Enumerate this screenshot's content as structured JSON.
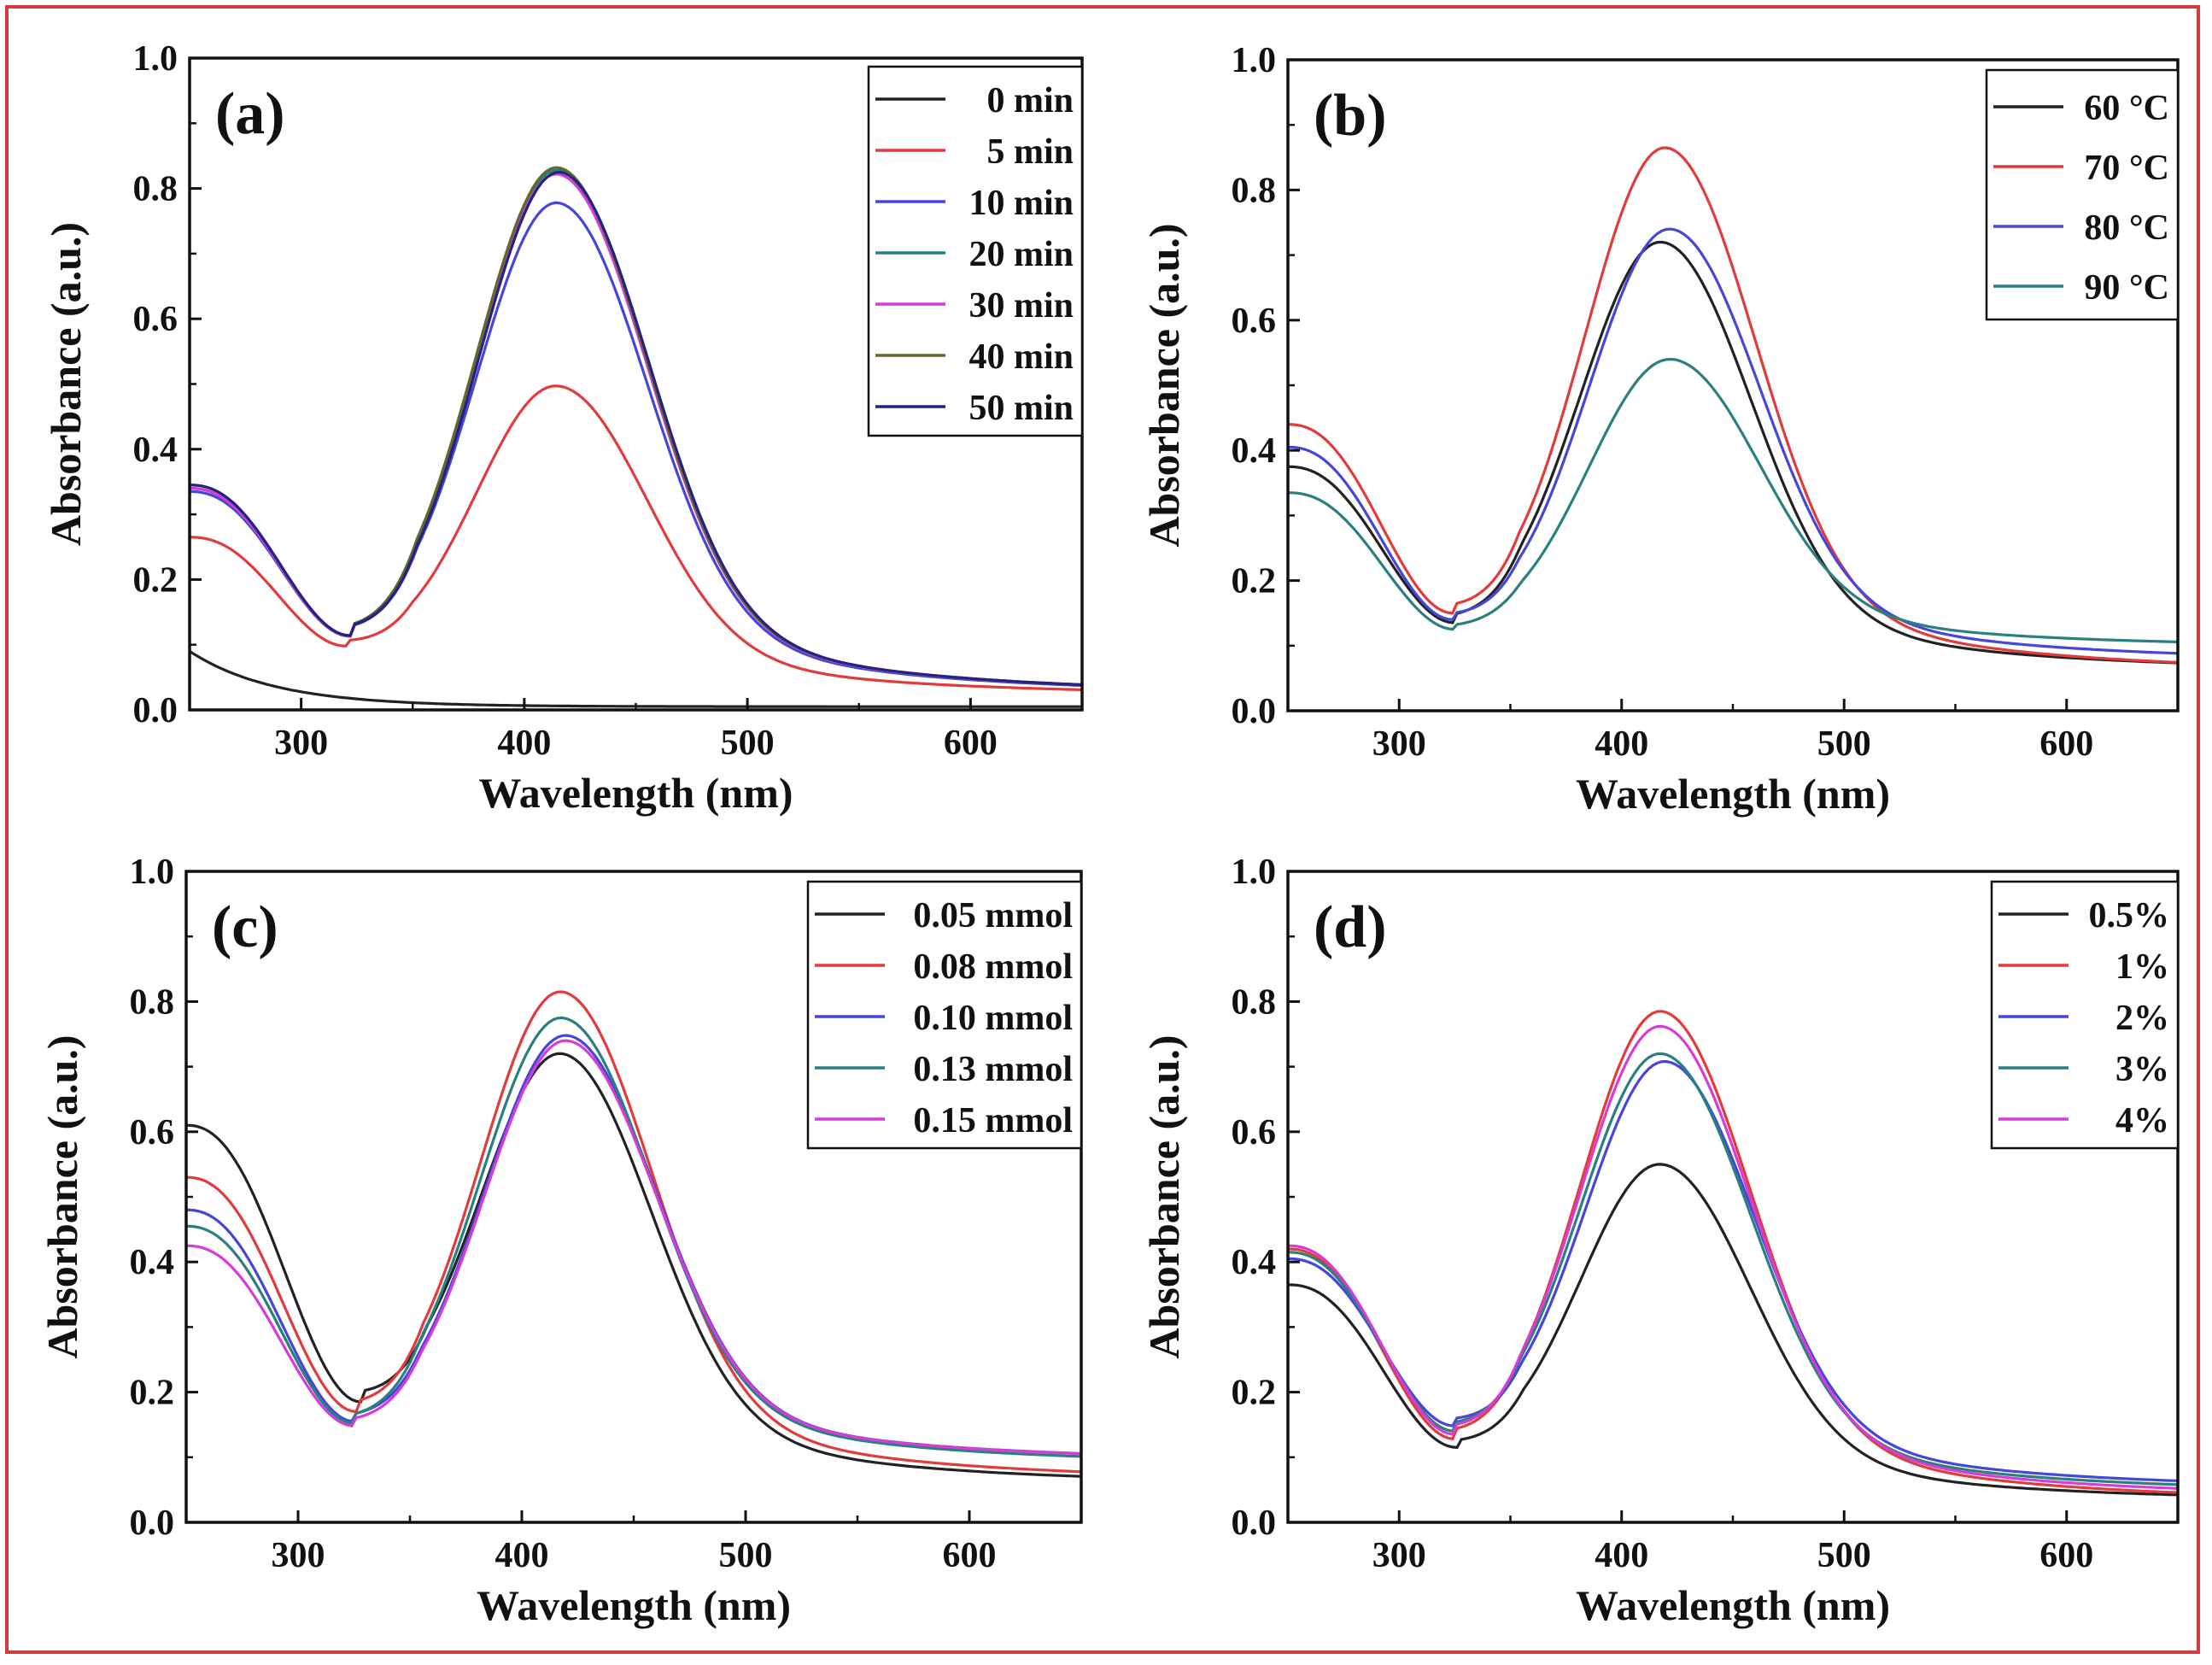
{
  "figure": {
    "border_color": "#d43c3c"
  },
  "chart_data": [
    {
      "type": "line",
      "panel_label": "(a)",
      "xlabel": "Wavelength (nm)",
      "ylabel": "Absorbance (a.u.)",
      "xlim": [
        250,
        650
      ],
      "ylim": [
        0.0,
        1.0
      ],
      "xticks": [
        "300",
        "400",
        "500",
        "600"
      ],
      "yticks": [
        "0.0",
        "0.2",
        "0.4",
        "0.6",
        "0.8",
        "1.0"
      ],
      "legend_position": "top-right",
      "series": [
        {
          "name": "0 min",
          "color": "#222222",
          "shape": "decay",
          "start": 0.09,
          "tail": 0.005
        },
        {
          "name": "5 min",
          "color": "#e03c3c",
          "shape": "peak",
          "a0": 0.265,
          "min": 0.098,
          "min_x": 320,
          "peak": 0.497,
          "peak_x": 415,
          "tail": 0.02
        },
        {
          "name": "10 min",
          "color": "#4646d8",
          "shape": "peak",
          "a0": 0.335,
          "min": 0.113,
          "min_x": 322,
          "peak": 0.778,
          "peak_x": 415,
          "tail": 0.02
        },
        {
          "name": "20 min",
          "color": "#2a7f7f",
          "shape": "peak",
          "a0": 0.34,
          "min": 0.113,
          "min_x": 322,
          "peak": 0.828,
          "peak_x": 415,
          "tail": 0.02
        },
        {
          "name": "30 min",
          "color": "#d63cd6",
          "shape": "peak",
          "a0": 0.34,
          "min": 0.113,
          "min_x": 322,
          "peak": 0.822,
          "peak_x": 415,
          "tail": 0.02
        },
        {
          "name": "40 min",
          "color": "#5e6a26",
          "shape": "peak",
          "a0": 0.345,
          "min": 0.114,
          "min_x": 322,
          "peak": 0.832,
          "peak_x": 415,
          "tail": 0.02
        },
        {
          "name": "50 min",
          "color": "#232380",
          "shape": "peak",
          "a0": 0.345,
          "min": 0.114,
          "min_x": 322,
          "peak": 0.825,
          "peak_x": 416,
          "tail": 0.02
        }
      ]
    },
    {
      "type": "line",
      "panel_label": "(b)",
      "xlabel": "Wavelength (nm)",
      "ylabel": "Absorbance (a.u.)",
      "xlim": [
        250,
        650
      ],
      "ylim": [
        0.0,
        1.0
      ],
      "xticks": [
        "300",
        "400",
        "500",
        "600"
      ],
      "yticks": [
        "0.0",
        "0.2",
        "0.4",
        "0.6",
        "0.8",
        "1.0"
      ],
      "legend_position": "top-right",
      "series": [
        {
          "name": "60 °C",
          "color": "#222222",
          "shape": "peak",
          "a0": 0.375,
          "min": 0.135,
          "min_x": 325,
          "peak": 0.72,
          "peak_x": 418,
          "tail": 0.058
        },
        {
          "name": "70 °C",
          "color": "#e03c3c",
          "shape": "peak",
          "a0": 0.44,
          "min": 0.15,
          "min_x": 324,
          "peak": 0.865,
          "peak_x": 420,
          "tail": 0.055
        },
        {
          "name": "80 °C",
          "color": "#4646d8",
          "shape": "peak",
          "a0": 0.405,
          "min": 0.14,
          "min_x": 324,
          "peak": 0.74,
          "peak_x": 422,
          "tail": 0.072
        },
        {
          "name": "90 °C",
          "color": "#2a7f7f",
          "shape": "peak",
          "a0": 0.335,
          "min": 0.125,
          "min_x": 325,
          "peak": 0.54,
          "peak_x": 422,
          "tail": 0.095
        }
      ]
    },
    {
      "type": "line",
      "panel_label": "(c)",
      "xlabel": "Wavelength (nm)",
      "ylabel": "Absorbance (a.u.)",
      "xlim": [
        250,
        650
      ],
      "ylim": [
        0.0,
        1.0
      ],
      "xticks": [
        "300",
        "400",
        "500",
        "600"
      ],
      "yticks": [
        "0.0",
        "0.2",
        "0.4",
        "0.6",
        "0.8",
        "1.0"
      ],
      "legend_position": "top-right",
      "series": [
        {
          "name": "0.05 mmol",
          "color": "#222222",
          "shape": "peak",
          "a0": 0.61,
          "min": 0.185,
          "min_x": 328,
          "peak": 0.72,
          "peak_x": 418,
          "tail": 0.055
        },
        {
          "name": "0.08 mmol",
          "color": "#e03c3c",
          "shape": "peak",
          "a0": 0.53,
          "min": 0.17,
          "min_x": 326,
          "peak": 0.815,
          "peak_x": 418,
          "tail": 0.06
        },
        {
          "name": "0.10 mmol",
          "color": "#4646d8",
          "shape": "peak",
          "a0": 0.48,
          "min": 0.155,
          "min_x": 325,
          "peak": 0.748,
          "peak_x": 420,
          "tail": 0.09
        },
        {
          "name": "0.13 mmol",
          "color": "#2a7f7f",
          "shape": "peak",
          "a0": 0.455,
          "min": 0.152,
          "min_x": 325,
          "peak": 0.775,
          "peak_x": 418,
          "tail": 0.085
        },
        {
          "name": "0.15 mmol",
          "color": "#d63cd6",
          "shape": "peak",
          "a0": 0.425,
          "min": 0.148,
          "min_x": 325,
          "peak": 0.74,
          "peak_x": 420,
          "tail": 0.09
        }
      ]
    },
    {
      "type": "line",
      "panel_label": "(d)",
      "xlabel": "Wavelength (nm)",
      "ylabel": "Absorbance (a.u.)",
      "xlim": [
        250,
        650
      ],
      "ylim": [
        0.0,
        1.0
      ],
      "xticks": [
        "300",
        "400",
        "500",
        "600"
      ],
      "yticks": [
        "0.0",
        "0.2",
        "0.4",
        "0.6",
        "0.8",
        "1.0"
      ],
      "legend_position": "top-right",
      "series": [
        {
          "name": "0.5%",
          "color": "#222222",
          "shape": "peak",
          "a0": 0.365,
          "min": 0.115,
          "min_x": 326,
          "peak": 0.55,
          "peak_x": 418,
          "tail": 0.03
        },
        {
          "name": "1%",
          "color": "#e03c3c",
          "shape": "peak",
          "a0": 0.42,
          "min": 0.128,
          "min_x": 325,
          "peak": 0.785,
          "peak_x": 418,
          "tail": 0.028
        },
        {
          "name": "2%",
          "color": "#4646d8",
          "shape": "peak",
          "a0": 0.405,
          "min": 0.148,
          "min_x": 325,
          "peak": 0.708,
          "peak_x": 420,
          "tail": 0.048
        },
        {
          "name": "3%",
          "color": "#2a7f7f",
          "shape": "peak",
          "a0": 0.415,
          "min": 0.14,
          "min_x": 325,
          "peak": 0.72,
          "peak_x": 418,
          "tail": 0.042
        },
        {
          "name": "4%",
          "color": "#d63cd6",
          "shape": "peak",
          "a0": 0.425,
          "min": 0.135,
          "min_x": 325,
          "peak": 0.762,
          "peak_x": 418,
          "tail": 0.035
        }
      ]
    }
  ]
}
